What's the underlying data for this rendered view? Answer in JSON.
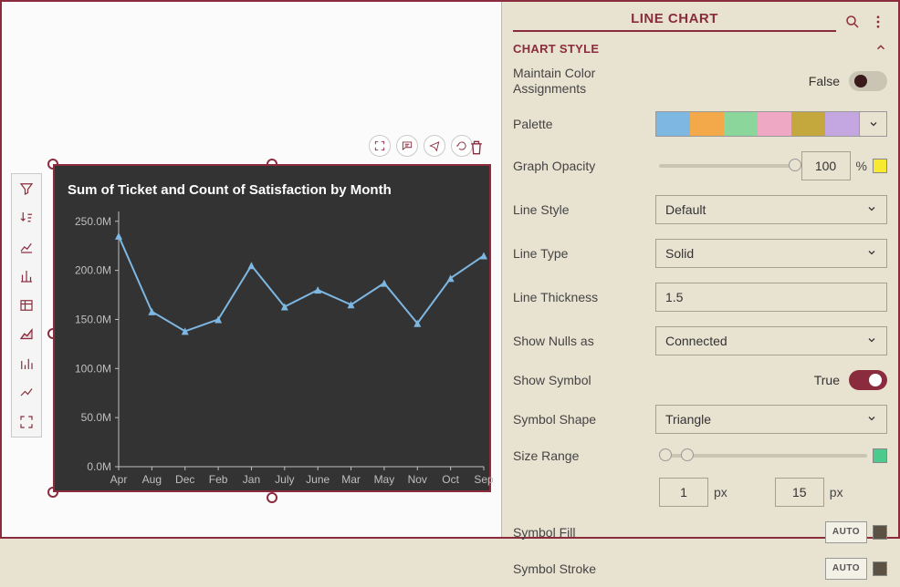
{
  "panel": {
    "title": "LINE CHART",
    "section_title": "CHART STYLE",
    "rows": {
      "maintain_color_assign_label": "Maintain Color Assignments",
      "maintain_color_value": "False",
      "palette_label": "Palette",
      "palette_colors": [
        "#7db7e2",
        "#f3a84a",
        "#8bd69a",
        "#efa8c4",
        "#c4a83e",
        "#c4a7e1"
      ],
      "graph_opacity_label": "Graph Opacity",
      "graph_opacity_value": "100",
      "graph_opacity_unit": "%",
      "graph_opacity_swatch": "#f7e830",
      "line_style_label": "Line Style",
      "line_style_value": "Default",
      "line_type_label": "Line Type",
      "line_type_value": "Solid",
      "line_thickness_label": "Line Thickness",
      "line_thickness_value": "1.5",
      "show_nulls_label": "Show Nulls as",
      "show_nulls_value": "Connected",
      "show_symbol_label": "Show Symbol",
      "show_symbol_value": "True",
      "symbol_shape_label": "Symbol Shape",
      "symbol_shape_value": "Triangle",
      "size_range_label": "Size Range",
      "size_range_min": "1",
      "size_range_max": "15",
      "size_range_unit": "px",
      "symbol_fill_label": "Symbol Fill",
      "symbol_fill_btn": "AUTO",
      "symbol_stroke_label": "Symbol Stroke",
      "symbol_stroke_btn": "AUTO"
    }
  },
  "chart": {
    "title": "Sum of Ticket and Count of Satisfaction by Month",
    "type": "line",
    "background_color": "#333333",
    "line_color": "#7db7e2",
    "marker_shape": "triangle",
    "marker_size": 8,
    "line_width": 2,
    "grid_color": "#555555",
    "text_color": "#bfbfbf",
    "title_fontsize": 15,
    "label_fontsize": 12,
    "x_categories": [
      "Apr",
      "Aug",
      "Dec",
      "Feb",
      "Jan",
      "July",
      "June",
      "Mar",
      "May",
      "Nov",
      "Oct",
      "Sep"
    ],
    "y_values_M": [
      235,
      158,
      138,
      150,
      205,
      163,
      180,
      165,
      187,
      146,
      192,
      215
    ],
    "y_ticks_M": [
      0,
      50,
      100,
      150,
      200,
      250
    ],
    "y_tick_labels": [
      "0.0M",
      "50.0M",
      "100.0M",
      "150.0M",
      "200.0M",
      "250.0M"
    ],
    "ylim": [
      0,
      260
    ]
  }
}
